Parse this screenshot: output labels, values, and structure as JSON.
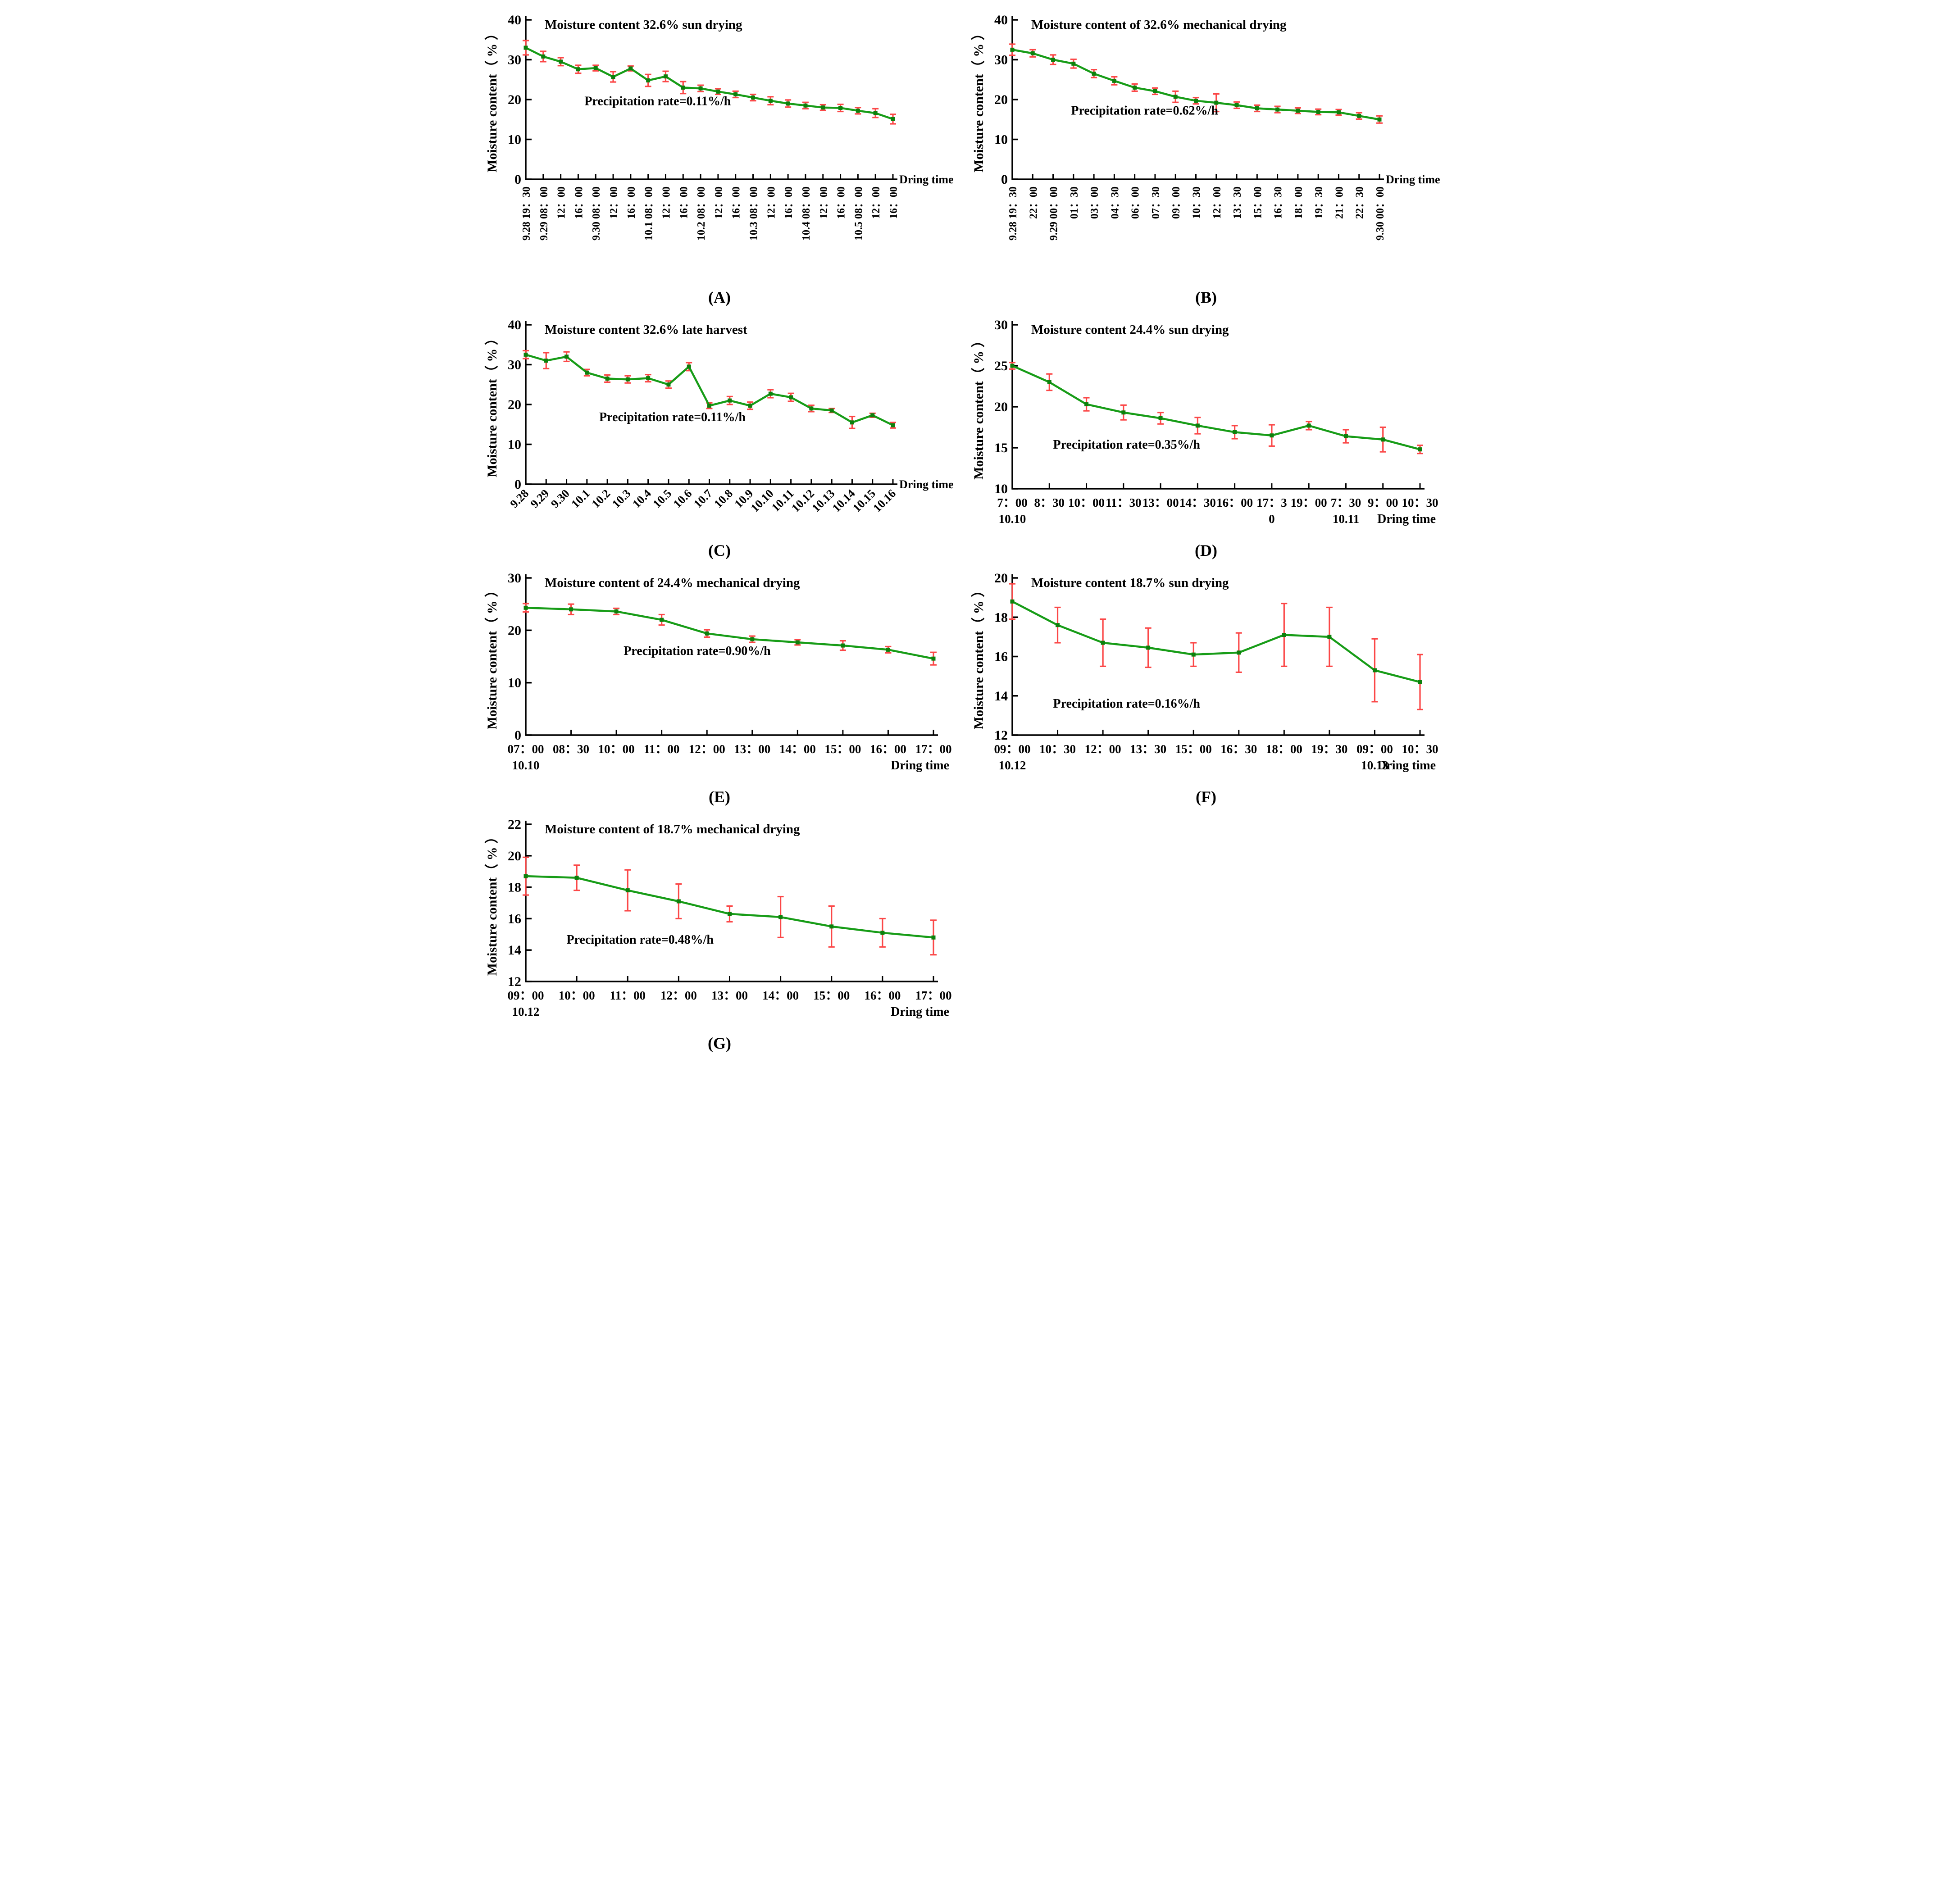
{
  "figure": {
    "xlabel": "Dring time",
    "ylabel": "Moisture content（ % ）"
  },
  "colors": {
    "line": "#179c17",
    "marker": "#0d800d",
    "error_bar": "#fb4747",
    "axis": "#000000",
    "annotation_text": "#3a3a3a",
    "background": "#ffffff"
  },
  "chart_data": [
    {
      "id": "A",
      "type": "line",
      "caption": "(A)",
      "title": "Moisture content 32.6% sun drying",
      "annotation": "Precipitation rate=0.11%/h",
      "annotation_anchor": {
        "x_frac": 0.16,
        "y_value": 18.6
      },
      "xlabel": "Dring time",
      "ylabel": "Moisture content（ % ）",
      "ylim": [
        0,
        40
      ],
      "yticks": [
        0,
        10,
        20,
        30,
        40
      ],
      "label_style": "vertical",
      "xlabel_placement": "axis-right",
      "categories": [
        "9.28 19：30",
        "9.29 08：00",
        "12：00",
        "16：00",
        "9.30 08：00",
        "12：00",
        "16：00",
        "10.1 08：00",
        "12：00",
        "16：00",
        "10.2 08：00",
        "12：00",
        "16：00",
        "10.3 08：00",
        "12：00",
        "16：00",
        "10.4 08：00",
        "12：00",
        "16：00",
        "10.5 08：00",
        "12：00",
        "16：00"
      ],
      "values": [
        33.0,
        30.8,
        29.5,
        27.6,
        27.9,
        25.7,
        27.8,
        24.8,
        25.8,
        23.0,
        22.8,
        22.0,
        21.3,
        20.5,
        19.7,
        19.0,
        18.5,
        18.0,
        17.9,
        17.2,
        16.6,
        15.1
      ],
      "errors": [
        1.8,
        1.3,
        1.0,
        1.0,
        0.7,
        1.3,
        0.6,
        1.5,
        1.3,
        1.5,
        0.8,
        0.7,
        0.8,
        0.8,
        1.0,
        0.9,
        0.8,
        0.7,
        0.9,
        0.8,
        1.1,
        1.2
      ]
    },
    {
      "id": "B",
      "type": "line",
      "caption": "(B)",
      "title": "Moisture content of 32.6% mechanical drying",
      "annotation": "Precipitation rate=0.62%/h",
      "annotation_anchor": {
        "x_frac": 0.16,
        "y_value": 16.2
      },
      "xlabel": "Dring time",
      "ylabel": "Moisture content（ % ）",
      "ylim": [
        0,
        40
      ],
      "yticks": [
        0,
        10,
        20,
        30,
        40
      ],
      "label_style": "vertical",
      "xlabel_placement": "axis-right",
      "categories": [
        "9.28 19：30",
        "22：00",
        "9.29 00：00",
        "01：30",
        "03：00",
        "04：30",
        "06：00",
        "07：30",
        "09：00",
        "10：30",
        "12：00",
        "13：30",
        "15：00",
        "16：30",
        "18：00",
        "19：30",
        "21：00",
        "22：30",
        "9.30 00：00"
      ],
      "values": [
        32.5,
        31.6,
        30.0,
        29.0,
        26.5,
        24.7,
        23.0,
        22.1,
        20.7,
        19.7,
        19.2,
        18.6,
        17.8,
        17.5,
        17.2,
        16.9,
        16.8,
        15.9,
        15.0
      ],
      "errors": [
        1.4,
        0.9,
        1.2,
        1.1,
        1.0,
        1.0,
        0.9,
        0.8,
        1.4,
        0.8,
        2.2,
        0.8,
        0.8,
        0.8,
        0.7,
        0.7,
        0.7,
        0.8,
        0.9
      ]
    },
    {
      "id": "C",
      "type": "line",
      "caption": "(C)",
      "title": "Moisture content 32.6% late harvest",
      "annotation": "Precipitation rate=0.11%/h",
      "annotation_anchor": {
        "x_frac": 0.2,
        "y_value": 15.8
      },
      "xlabel": "Dring time",
      "ylabel": "Moisture content（ % ）",
      "ylim": [
        0,
        40
      ],
      "yticks": [
        0,
        10,
        20,
        30,
        40
      ],
      "label_style": "diag",
      "xlabel_placement": "axis-right",
      "categories": [
        "9.28",
        "9.29",
        "9.30",
        "10.1",
        "10.2",
        "10.3",
        "10.4",
        "10.5",
        "10.6",
        "10.7",
        "10.8",
        "10.9",
        "10.10",
        "10.11",
        "10.12",
        "10.13",
        "10.14",
        "10.15",
        "10.16"
      ],
      "values": [
        32.5,
        31.0,
        32.0,
        28.0,
        26.5,
        26.3,
        26.6,
        25.0,
        29.5,
        19.7,
        21.0,
        19.7,
        22.7,
        21.8,
        19.0,
        18.5,
        15.5,
        17.3,
        14.8
      ],
      "errors": [
        1.0,
        2.0,
        1.2,
        0.8,
        0.9,
        0.9,
        0.9,
        0.9,
        1.0,
        0.7,
        1.0,
        0.9,
        1.0,
        1.0,
        0.8,
        0.5,
        1.5,
        0.5,
        0.7
      ]
    },
    {
      "id": "D",
      "type": "line",
      "caption": "(D)",
      "title": "Moisture content 24.4% sun drying",
      "annotation": "Precipitation rate=0.35%/h",
      "annotation_anchor": {
        "x_frac": 0.1,
        "y_value": 14.9
      },
      "xlabel": "Dring time",
      "ylabel": "Moisture content（ % ）",
      "ylim": [
        10,
        30
      ],
      "yticks": [
        10,
        15,
        20,
        25,
        30
      ],
      "label_style": "two-line",
      "xlabel_placement": "below-right",
      "categories": [
        {
          "t": "7：00",
          "d": "10.10"
        },
        {
          "t": "8：30"
        },
        {
          "t": "10：00"
        },
        {
          "t": "11：30"
        },
        {
          "t": "13：00"
        },
        {
          "t": "14：30"
        },
        {
          "t": "16：00"
        },
        {
          "t": "17：3",
          "d": "0"
        },
        {
          "t": "19：00"
        },
        {
          "t": "7：30",
          "d": "10.11"
        },
        {
          "t": "9：00"
        },
        {
          "t": "10：30"
        }
      ],
      "values": [
        25.0,
        23.0,
        20.3,
        19.3,
        18.6,
        17.7,
        16.9,
        16.5,
        17.7,
        16.4,
        16.0,
        14.8
      ],
      "errors": [
        0.4,
        1.0,
        0.8,
        0.9,
        0.7,
        1.0,
        0.8,
        1.3,
        0.5,
        0.8,
        1.5,
        0.5
      ]
    },
    {
      "id": "E",
      "type": "line",
      "caption": "(E)",
      "title": "Moisture content of 24.4% mechanical drying",
      "annotation": "Precipitation rate=0.90%/h",
      "annotation_anchor": {
        "x_frac": 0.24,
        "y_value": 15.3
      },
      "xlabel": "Dring time",
      "ylabel": "Moisture content（ % ）",
      "ylim": [
        0,
        30
      ],
      "yticks": [
        0,
        10,
        20,
        30
      ],
      "label_style": "two-line",
      "xlabel_placement": "below-right",
      "categories": [
        {
          "t": "07：00",
          "d": "10.10"
        },
        {
          "t": "08：30"
        },
        {
          "t": "10：00"
        },
        {
          "t": "11：00"
        },
        {
          "t": "12：00"
        },
        {
          "t": "13：00"
        },
        {
          "t": "14：00"
        },
        {
          "t": "15：00"
        },
        {
          "t": "16：00"
        },
        {
          "t": "17：00"
        }
      ],
      "values": [
        24.3,
        24.0,
        23.6,
        22.0,
        19.4,
        18.3,
        17.7,
        17.1,
        16.3,
        14.6
      ],
      "errors": [
        0.8,
        1.0,
        0.6,
        1.0,
        0.7,
        0.6,
        0.5,
        0.9,
        0.6,
        1.2
      ]
    },
    {
      "id": "F",
      "type": "line",
      "caption": "(F)",
      "title": "Moisture content 18.7% sun drying",
      "annotation": "Precipitation rate=0.16%/h",
      "annotation_anchor": {
        "x_frac": 0.1,
        "y_value": 13.4
      },
      "xlabel": "Dring time",
      "ylabel": "Moisture content（ % ）",
      "ylim": [
        12,
        20
      ],
      "yticks": [
        12,
        14,
        16,
        18,
        20
      ],
      "label_style": "two-line",
      "xlabel_placement": "below-right",
      "categories": [
        {
          "t": "09：00",
          "d": "10.12"
        },
        {
          "t": "10：30"
        },
        {
          "t": "12：00"
        },
        {
          "t": "13：30"
        },
        {
          "t": "15：00"
        },
        {
          "t": "16：30"
        },
        {
          "t": "18：00"
        },
        {
          "t": "19：30"
        },
        {
          "t": "09：00",
          "d": "10.13"
        },
        {
          "t": "10：30"
        }
      ],
      "values": [
        18.8,
        17.6,
        16.7,
        16.45,
        16.1,
        16.2,
        17.1,
        17.0,
        15.3,
        14.7
      ],
      "errors": [
        0.9,
        0.9,
        1.2,
        1.0,
        0.6,
        1.0,
        1.6,
        1.5,
        1.6,
        1.4
      ]
    },
    {
      "id": "G",
      "type": "line",
      "caption": "(G)",
      "title": "Moisture content of 18.7% mechanical drying",
      "annotation": "Precipitation rate=0.48%/h",
      "annotation_anchor": {
        "x_frac": 0.1,
        "y_value": 14.4
      },
      "xlabel": "Dring  time",
      "ylabel": "Moisture content（ % ）",
      "ylim": [
        12,
        22
      ],
      "yticks": [
        12,
        14,
        16,
        18,
        20,
        22
      ],
      "label_style": "two-line",
      "xlabel_placement": "below-right",
      "categories": [
        {
          "t": "09：00",
          "d": "10.12"
        },
        {
          "t": "10：00"
        },
        {
          "t": "11：00"
        },
        {
          "t": "12：00"
        },
        {
          "t": "13：00"
        },
        {
          "t": "14：00"
        },
        {
          "t": "15：00"
        },
        {
          "t": "16：00"
        },
        {
          "t": "17：00"
        }
      ],
      "values": [
        18.7,
        18.6,
        17.8,
        17.1,
        16.3,
        16.1,
        15.5,
        15.1,
        14.8
      ],
      "errors": [
        1.2,
        0.8,
        1.3,
        1.1,
        0.5,
        1.3,
        1.3,
        0.9,
        1.1
      ]
    }
  ]
}
